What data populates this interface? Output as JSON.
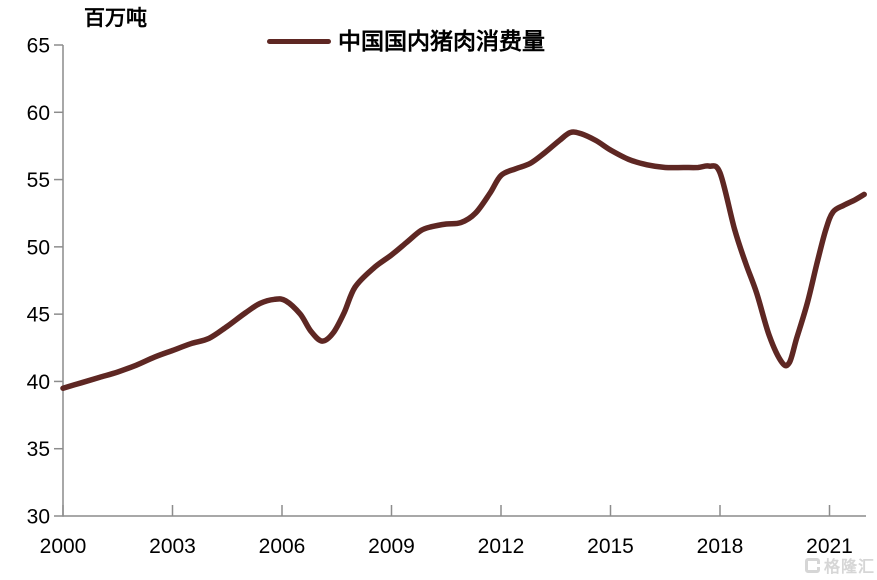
{
  "unit_label": "百万吨",
  "legend": {
    "label": "中国国内猪肉消费量"
  },
  "watermark": {
    "text": "格隆汇"
  },
  "chart_data": {
    "type": "line",
    "title": "",
    "xlabel": "",
    "ylabel": "百万吨",
    "xlim": [
      2000,
      2022
    ],
    "ylim": [
      30,
      65
    ],
    "x_ticks": [
      2000,
      2003,
      2006,
      2009,
      2012,
      2015,
      2018,
      2021
    ],
    "y_ticks": [
      30,
      35,
      40,
      45,
      50,
      55,
      60,
      65
    ],
    "grid": false,
    "legend_position": "top-center",
    "axis_color": "#8c8c8c",
    "series": [
      {
        "name": "中国国内猪肉消费量",
        "color": "#5e2723",
        "points": [
          [
            2000,
            39.5
          ],
          [
            2000.5,
            39.9
          ],
          [
            2001,
            40.3
          ],
          [
            2001.5,
            40.7
          ],
          [
            2002,
            41.2
          ],
          [
            2002.5,
            41.8
          ],
          [
            2003,
            42.3
          ],
          [
            2003.5,
            42.8
          ],
          [
            2004,
            43.2
          ],
          [
            2004.5,
            44.1
          ],
          [
            2005,
            45.1
          ],
          [
            2005.4,
            45.8
          ],
          [
            2005.8,
            46.1
          ],
          [
            2006.1,
            46.0
          ],
          [
            2006.5,
            45.0
          ],
          [
            2006.8,
            43.7
          ],
          [
            2007.1,
            43.0
          ],
          [
            2007.4,
            43.6
          ],
          [
            2007.7,
            45.1
          ],
          [
            2008,
            47.0
          ],
          [
            2008.5,
            48.4
          ],
          [
            2009,
            49.4
          ],
          [
            2009.4,
            50.3
          ],
          [
            2009.8,
            51.2
          ],
          [
            2010.1,
            51.5
          ],
          [
            2010.5,
            51.7
          ],
          [
            2010.9,
            51.8
          ],
          [
            2011.3,
            52.5
          ],
          [
            2011.7,
            54.0
          ],
          [
            2012,
            55.3
          ],
          [
            2012.4,
            55.8
          ],
          [
            2012.8,
            56.2
          ],
          [
            2013.2,
            57.0
          ],
          [
            2013.6,
            57.9
          ],
          [
            2013.9,
            58.5
          ],
          [
            2014.2,
            58.4
          ],
          [
            2014.6,
            57.9
          ],
          [
            2015,
            57.2
          ],
          [
            2015.5,
            56.5
          ],
          [
            2016,
            56.1
          ],
          [
            2016.5,
            55.9
          ],
          [
            2017,
            55.9
          ],
          [
            2017.4,
            55.9
          ],
          [
            2017.7,
            56.0
          ],
          [
            2018,
            55.5
          ],
          [
            2018.4,
            51.3
          ],
          [
            2018.7,
            48.8
          ],
          [
            2019,
            46.6
          ],
          [
            2019.35,
            43.4
          ],
          [
            2019.7,
            41.4
          ],
          [
            2019.9,
            41.4
          ],
          [
            2020.1,
            43.2
          ],
          [
            2020.4,
            45.9
          ],
          [
            2020.65,
            48.7
          ],
          [
            2020.9,
            51.3
          ],
          [
            2021.1,
            52.6
          ],
          [
            2021.4,
            53.1
          ],
          [
            2021.7,
            53.5
          ],
          [
            2021.95,
            53.9
          ]
        ]
      }
    ]
  }
}
